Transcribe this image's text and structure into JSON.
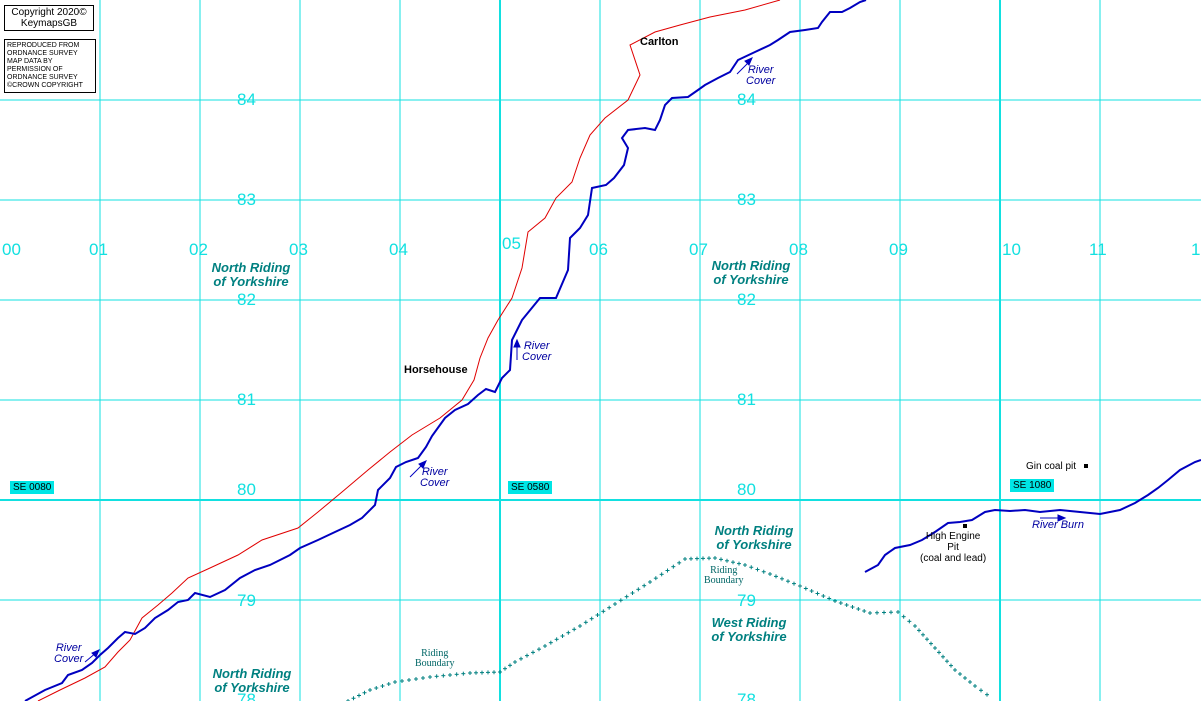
{
  "copyright": {
    "line1": "Copyright 2020©",
    "line2": "KeymapsGB"
  },
  "reproduced": [
    "REPRODUCED FROM",
    "ORDNANCE SURVEY",
    "MAP DATA BY",
    "PERMISSION OF",
    "ORDNANCE SURVEY",
    "©CROWN COPYRIGHT"
  ],
  "eastings": [
    "00",
    "01",
    "02",
    "03",
    "04",
    "05",
    "06",
    "07",
    "08",
    "09",
    "10",
    "11",
    "1"
  ],
  "northings": {
    "n84": "84",
    "n83": "83",
    "n82": "82",
    "n81": "81",
    "n80": "80",
    "n79": "79",
    "n78": "78"
  },
  "grid_refs": {
    "se0080": "SE 0080",
    "se0580": "SE 0580",
    "se1080": "SE 1080"
  },
  "places": {
    "carlton": "Carlton",
    "horsehouse": "Horsehouse"
  },
  "county_labels": {
    "nr_top_left": [
      "North Riding",
      "of Yorkshire"
    ],
    "nr_top_right": [
      "North Riding",
      "of Yorkshire"
    ],
    "nr_mid": [
      "North Riding",
      "of Yorkshire"
    ],
    "wr": [
      "West Riding",
      "of Yorkshire"
    ],
    "nr_bottom_left": [
      "North Riding",
      "of Yorkshire"
    ]
  },
  "river_labels": {
    "cover_top": [
      "River",
      "Cover"
    ],
    "cover_mid": [
      "River",
      "Cover"
    ],
    "cover_low": [
      "River",
      "Cover"
    ],
    "cover_bottom": [
      "River",
      "Cover"
    ],
    "burn": "River Burn"
  },
  "boundary_labels": {
    "left": [
      "Riding",
      "Boundary"
    ],
    "right": [
      "Riding",
      "Boundary"
    ]
  },
  "features": {
    "gin_pit": "Gin coal pit",
    "high_engine": [
      "High Engine",
      "Pit",
      "(coal and lead)"
    ]
  },
  "colors": {
    "grid": "#12e0e0",
    "river": "#0000c0",
    "road": "#e00000",
    "boundary": "#008080",
    "county": "#008080"
  }
}
